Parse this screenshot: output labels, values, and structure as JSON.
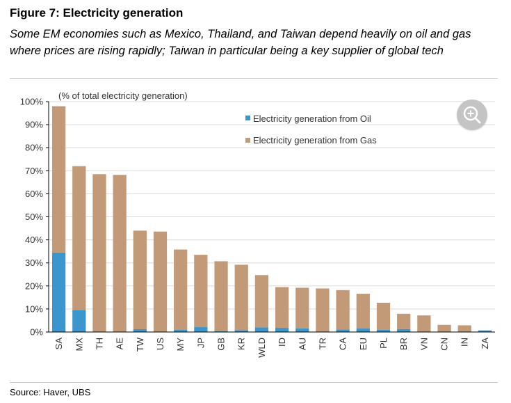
{
  "header": {
    "title": "Figure 7: Electricity generation",
    "subtitle": "Some EM economies such as Mexico, Thailand, and Taiwan depend heavily on oil and gas where prices are rising rapidly; Taiwan in particular being a key supplier of global tech"
  },
  "footer": {
    "source": "Source: Haver, UBS"
  },
  "toolbar": {
    "zoom_icon": "zoom-in-icon"
  },
  "colors": {
    "oil": "#3a96cd",
    "gas": "#c29a77",
    "axis": "#000000",
    "grid": "#d9d9d9"
  },
  "chart_data": {
    "type": "bar",
    "stacked": true,
    "title": "",
    "ylabel": "(% of total electricity generation)",
    "xlabel": "",
    "ylim": [
      0,
      100
    ],
    "yticks": [
      0,
      10,
      20,
      30,
      40,
      50,
      60,
      70,
      80,
      90,
      100
    ],
    "ytick_labels": [
      "0%",
      "10%",
      "20%",
      "30%",
      "40%",
      "50%",
      "60%",
      "70%",
      "80%",
      "90%",
      "100%"
    ],
    "grid": true,
    "legend_position": "top-right",
    "categories": [
      "SA",
      "MX",
      "TH",
      "AE",
      "TW",
      "US",
      "MY",
      "JP",
      "GB",
      "KR",
      "WLD",
      "ID",
      "AU",
      "TR",
      "CA",
      "EU",
      "PL",
      "BR",
      "VN",
      "CN",
      "IN",
      "ZA"
    ],
    "series": [
      {
        "name": "Electricity generation from Oil",
        "color": "#3a96cd",
        "values": [
          34.5,
          9.5,
          0,
          0,
          1.2,
          0,
          0.9,
          2.1,
          0.3,
          0.8,
          2.0,
          1.8,
          1.6,
          0.1,
          1.1,
          1.5,
          1.0,
          1.3,
          0,
          0,
          0.1,
          0.7
        ]
      },
      {
        "name": "Electricity generation from Gas",
        "color": "#c29a77",
        "values": [
          63.5,
          62.5,
          68.5,
          68.2,
          42.8,
          43.6,
          34.9,
          31.4,
          30.4,
          28.4,
          22.7,
          17.7,
          17.6,
          18.8,
          17.1,
          15.1,
          11.7,
          6.6,
          7.2,
          3.1,
          2.8,
          0
        ]
      }
    ]
  }
}
